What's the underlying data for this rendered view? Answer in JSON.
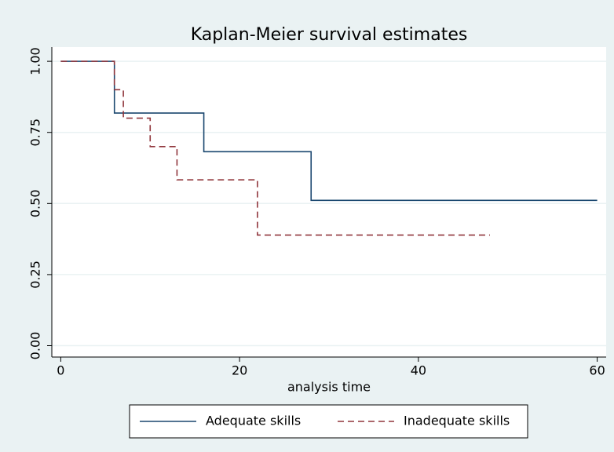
{
  "chart_data": {
    "type": "line",
    "step": "post",
    "title": "Kaplan-Meier survival estimates",
    "x_label": "analysis time",
    "xlim": [
      -1,
      61
    ],
    "xticks": [
      0,
      20,
      40,
      60
    ],
    "ylim": [
      -0.04,
      1.05
    ],
    "yticks": [
      {
        "value": 0,
        "label": "0.00"
      },
      {
        "value": 0.25,
        "label": "0.25"
      },
      {
        "value": 0.5,
        "label": "0.50"
      },
      {
        "value": 0.75,
        "label": "0.75"
      },
      {
        "value": 1,
        "label": "1.00"
      }
    ],
    "grid": true,
    "legend": "bottom",
    "series": [
      {
        "name": "Adequate skills",
        "color": "#1a476f",
        "dash": "solid",
        "x": [
          0,
          6,
          16,
          28,
          60
        ],
        "values": [
          1,
          0.818,
          0.682,
          0.511,
          0.511
        ]
      },
      {
        "name": "Inadequate skills",
        "color": "#90353b",
        "dash": "dashed",
        "x": [
          0,
          6,
          7,
          10,
          13,
          22,
          48
        ],
        "values": [
          1,
          0.9,
          0.8,
          0.7,
          0.583,
          0.389,
          0.389
        ]
      }
    ]
  }
}
